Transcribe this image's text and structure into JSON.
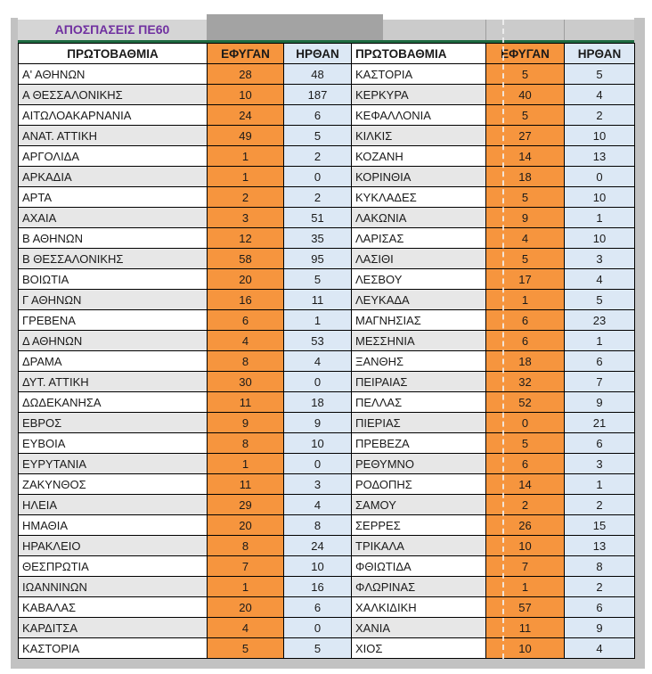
{
  "title": "ΑΠΟΣΠΑΣΕΙΣ ΠΕ60",
  "colors": {
    "title_text": "#7030a0",
    "title_band": "#d5d5d5",
    "title_band_dark": "#a3a3a3",
    "green_rule": "#1e6b41",
    "efygan_orange": "#f6953e",
    "irthan_blue": "#dce8f5",
    "row_stripe_gray": "#e7e7e7",
    "sheet_gutter_gray": "#c2c2c2",
    "border_black": "#000000"
  },
  "left_table": {
    "headers": {
      "region": "ΠΡΩΤΟΒΑΘΜΙΑ",
      "efygan": "ΕΦΥΓΑΝ",
      "irthan": "ΗΡΘΑΝ"
    },
    "rows": [
      {
        "region": "Α'  ΑΘΗΝΩΝ",
        "efygan": 28,
        "irthan": 48
      },
      {
        "region": "Α ΘΕΣΣΑΛΟΝΙΚΗΣ",
        "efygan": 10,
        "irthan": 187
      },
      {
        "region": "ΑΙΤΩΛΟΑΚΑΡΝΑΝΙΑ",
        "efygan": 24,
        "irthan": 6
      },
      {
        "region": "ΑΝΑΤ. ΑΤΤΙΚΗ",
        "efygan": 49,
        "irthan": 5
      },
      {
        "region": "ΑΡΓΟΛΙΔΑ",
        "efygan": 1,
        "irthan": 2
      },
      {
        "region": "ΑΡΚΑΔΙΑ",
        "efygan": 1,
        "irthan": 0
      },
      {
        "region": "ΑΡΤΑ",
        "efygan": 2,
        "irthan": 2
      },
      {
        "region": "ΑΧΑΙΑ",
        "efygan": 3,
        "irthan": 51
      },
      {
        "region": "Β ΑΘΗΝΩΝ",
        "efygan": 12,
        "irthan": 35
      },
      {
        "region": "Β ΘΕΣΣΑΛΟΝΙΚΗΣ",
        "efygan": 58,
        "irthan": 95
      },
      {
        "region": "ΒΟΙΩΤΙΑ",
        "efygan": 20,
        "irthan": 5
      },
      {
        "region": "Γ ΑΘΗΝΩΝ",
        "efygan": 16,
        "irthan": 11
      },
      {
        "region": "ΓΡΕΒΕΝΑ",
        "efygan": 6,
        "irthan": 1
      },
      {
        "region": "Δ ΑΘΗΝΩΝ",
        "efygan": 4,
        "irthan": 53
      },
      {
        "region": "ΔΡΑΜΑ",
        "efygan": 8,
        "irthan": 4
      },
      {
        "region": "ΔΥΤ. ΑΤΤΙΚΗ",
        "efygan": 30,
        "irthan": 0
      },
      {
        "region": "ΔΩΔΕΚΑΝΗΣΑ",
        "efygan": 11,
        "irthan": 18
      },
      {
        "region": "ΕΒΡΟΣ",
        "efygan": 9,
        "irthan": 9
      },
      {
        "region": "ΕΥΒΟΙΑ",
        "efygan": 8,
        "irthan": 10
      },
      {
        "region": "ΕΥΡΥΤΑΝΙΑ",
        "efygan": 1,
        "irthan": 0
      },
      {
        "region": "ΖΑΚΥΝΘΟΣ",
        "efygan": 11,
        "irthan": 3
      },
      {
        "region": "ΗΛΕΙΑ",
        "efygan": 29,
        "irthan": 4
      },
      {
        "region": "ΗΜΑΘΙΑ",
        "efygan": 20,
        "irthan": 8
      },
      {
        "region": "ΗΡΑΚΛΕΙΟ",
        "efygan": 8,
        "irthan": 24
      },
      {
        "region": "ΘΕΣΠΡΩΤΙΑ",
        "efygan": 7,
        "irthan": 10
      },
      {
        "region": "ΙΩΑΝΝΙΝΩΝ",
        "efygan": 1,
        "irthan": 16
      },
      {
        "region": "ΚΑΒΑΛΑΣ",
        "efygan": 20,
        "irthan": 6
      },
      {
        "region": "ΚΑΡΔΙΤΣΑ",
        "efygan": 4,
        "irthan": 0
      },
      {
        "region": "ΚΑΣΤΟΡΙΑ",
        "efygan": 5,
        "irthan": 5
      }
    ]
  },
  "right_table": {
    "headers": {
      "region": "ΠΡΩΤΟΒΑΘΜΙΑ",
      "efygan": "ΕΦΥΓΑΝ",
      "irthan": "ΗΡΘΑΝ"
    },
    "rows": [
      {
        "region": "ΚΑΣΤΟΡΙΑ",
        "efygan": 5,
        "irthan": 5
      },
      {
        "region": "ΚΕΡΚΥΡΑ",
        "efygan": 40,
        "irthan": 4
      },
      {
        "region": "ΚΕΦΑΛΛΟΝΙΑ",
        "efygan": 5,
        "irthan": 2
      },
      {
        "region": "ΚΙΛΚΙΣ",
        "efygan": 27,
        "irthan": 10
      },
      {
        "region": "ΚΟΖΑΝΗ",
        "efygan": 14,
        "irthan": 13
      },
      {
        "region": "ΚΟΡΙΝΘΙΑ",
        "efygan": 18,
        "irthan": 0
      },
      {
        "region": "ΚΥΚΛΑΔΕΣ",
        "efygan": 5,
        "irthan": 10
      },
      {
        "region": "ΛΑΚΩΝΙΑ",
        "efygan": 9,
        "irthan": 1
      },
      {
        "region": "ΛΑΡΙΣΑΣ",
        "efygan": 4,
        "irthan": 10
      },
      {
        "region": "ΛΑΣΙΘΙ",
        "efygan": 5,
        "irthan": 3
      },
      {
        "region": "ΛΕΣΒΟΥ",
        "efygan": 17,
        "irthan": 4
      },
      {
        "region": "ΛΕΥΚΑΔΑ",
        "efygan": 1,
        "irthan": 5
      },
      {
        "region": "ΜΑΓΝΗΣΙΑΣ",
        "efygan": 6,
        "irthan": 23
      },
      {
        "region": "ΜΕΣΣΗΝΙΑ",
        "efygan": 6,
        "irthan": 1
      },
      {
        "region": "ΞΑΝΘΗΣ",
        "efygan": 18,
        "irthan": 6
      },
      {
        "region": "ΠΕΙΡΑΙΑΣ",
        "efygan": 32,
        "irthan": 7
      },
      {
        "region": "ΠΕΛΛΑΣ",
        "efygan": 52,
        "irthan": 9
      },
      {
        "region": "ΠΙΕΡΙΑΣ",
        "efygan": 0,
        "irthan": 21
      },
      {
        "region": "ΠΡΕΒΕΖΑ",
        "efygan": 5,
        "irthan": 6
      },
      {
        "region": "ΡΕΘΥΜΝΟ",
        "efygan": 6,
        "irthan": 3
      },
      {
        "region": "ΡΟΔΟΠΗΣ",
        "efygan": 14,
        "irthan": 1
      },
      {
        "region": "ΣΑΜΟΥ",
        "efygan": 2,
        "irthan": 2
      },
      {
        "region": "ΣΕΡΡΕΣ",
        "efygan": 26,
        "irthan": 15
      },
      {
        "region": "ΤΡΙΚΑΛΑ",
        "efygan": 10,
        "irthan": 13
      },
      {
        "region": "ΦΘΙΩΤΙΔΑ",
        "efygan": 7,
        "irthan": 8
      },
      {
        "region": "ΦΛΩΡΙΝΑΣ",
        "efygan": 1,
        "irthan": 2
      },
      {
        "region": "ΧΑΛΚΙΔΙΚΗ",
        "efygan": 57,
        "irthan": 6
      },
      {
        "region": "ΧΑΝΙΑ",
        "efygan": 11,
        "irthan": 9
      },
      {
        "region": "ΧΙΟΣ",
        "efygan": 10,
        "irthan": 4
      }
    ]
  }
}
